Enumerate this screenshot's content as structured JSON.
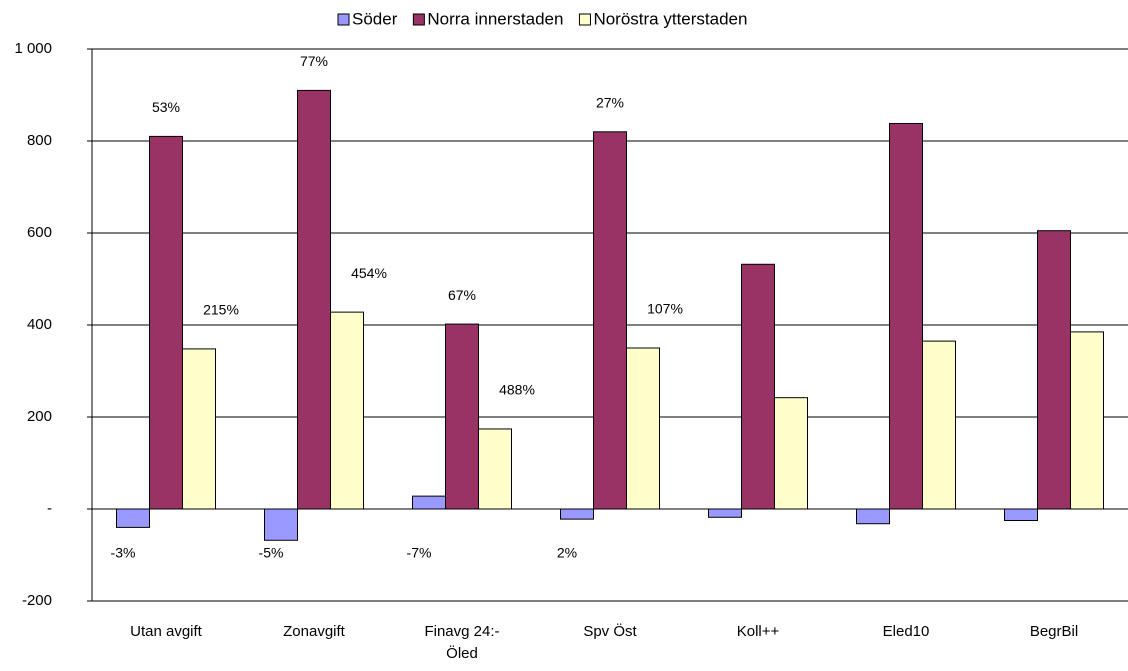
{
  "chart_data": {
    "type": "bar",
    "categories": [
      "Utan avgift",
      "Zonavgift",
      "Finavg 24:-\nÖled",
      "Spv Öst",
      "Koll++",
      "Eled10",
      "BegrBil"
    ],
    "series": [
      {
        "name": "Söder",
        "color": "#9999ff",
        "values": [
          -40,
          -68,
          28,
          -22,
          -18,
          -32,
          -25
        ],
        "data_labels": [
          "-3%",
          "-5%",
          "-7%",
          "2%",
          null,
          null,
          null
        ]
      },
      {
        "name": "Norra innerstaden",
        "color": "#993366",
        "values": [
          810,
          910,
          402,
          820,
          532,
          838,
          605
        ],
        "data_labels": [
          "53%",
          "77%",
          "67%",
          "27%",
          null,
          null,
          null
        ]
      },
      {
        "name": "Noröstra ytterstaden",
        "color": "#ffffcc",
        "values": [
          348,
          428,
          174,
          350,
          242,
          365,
          385
        ],
        "data_labels": [
          "215%",
          "454%",
          "488%",
          "107%",
          null,
          null,
          null
        ]
      }
    ],
    "ylim": [
      -200,
      1000
    ],
    "yticks": [
      -200,
      {
        "value": 0,
        "label": "-"
      },
      200,
      400,
      600,
      800,
      {
        "value": 1000,
        "label": "1 000"
      }
    ],
    "grid": true,
    "legend": "top"
  }
}
